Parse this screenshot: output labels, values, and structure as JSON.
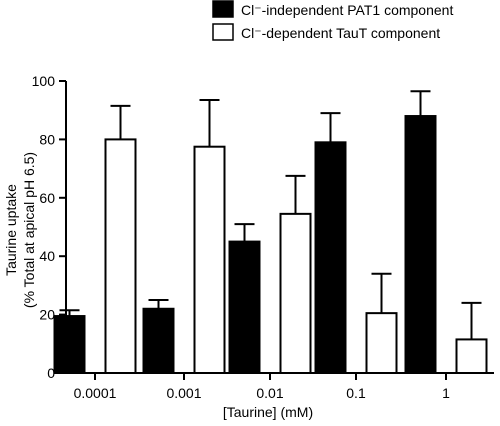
{
  "chart_data": {
    "type": "bar",
    "categories": [
      "0.0001",
      "0.001",
      "0.01",
      "0.1",
      "1"
    ],
    "series": [
      {
        "name": "Cl⁻-independent PAT1 component",
        "fill": "#000000",
        "values": [
          19.5,
          22,
          45,
          79,
          88
        ],
        "errors": [
          2,
          3,
          6,
          10,
          8.5
        ]
      },
      {
        "name": "Cl⁻-dependent TauT component",
        "fill": "#ffffff",
        "values": [
          80,
          77.5,
          54.5,
          20.5,
          11.5
        ],
        "errors": [
          11.5,
          16,
          13,
          13.5,
          12.5
        ]
      }
    ],
    "xlabel": "[Taurine] (mM)",
    "ylabel": "Taurine uptake",
    "ylabel2": "(% Total at apical pH 6.5)",
    "ylim": [
      0,
      100
    ],
    "yticks": [
      0,
      20,
      40,
      60,
      80,
      100
    ],
    "legend_position": "top-right",
    "grid": false
  }
}
